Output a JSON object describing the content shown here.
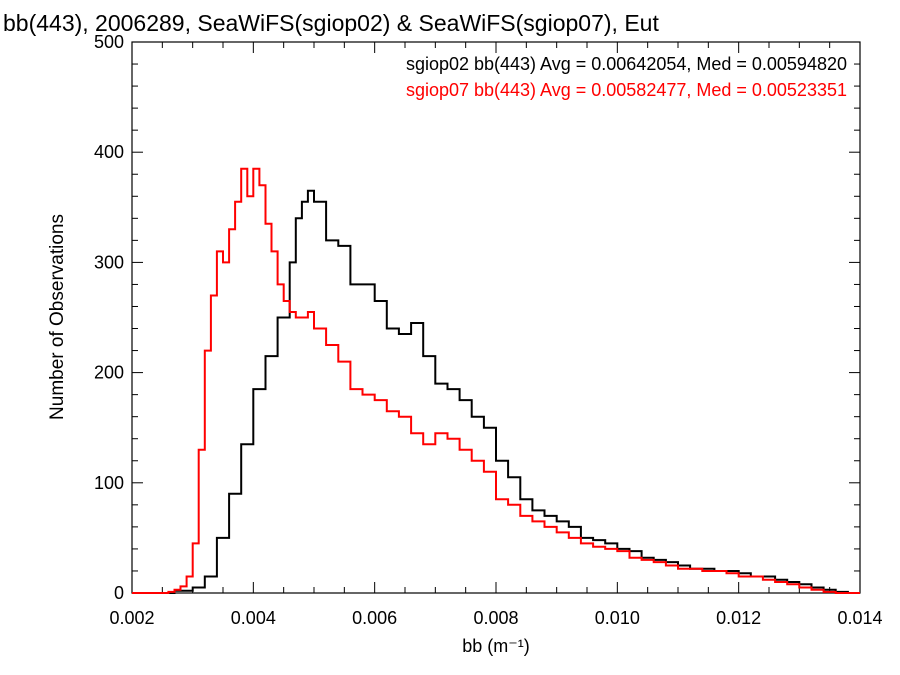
{
  "chart_data": {
    "type": "line",
    "title": "bb(443), 2006289, SeaWiFS(sgiop02) & SeaWiFS(sgiop07), Eut",
    "xlabel": "bb (m⁻¹)",
    "ylabel": "Number of Observations",
    "xlim": [
      0.002,
      0.014
    ],
    "ylim": [
      0,
      500
    ],
    "x_ticks": [
      "0.002",
      "0.004",
      "0.006",
      "0.008",
      "0.010",
      "0.012",
      "0.014"
    ],
    "y_ticks": [
      "0",
      "100",
      "200",
      "300",
      "400",
      "500"
    ],
    "grid": false,
    "legend_position": "top-right",
    "annotations": [
      "sgiop02 bb(443) Avg = 0.00642054, Med = 0.00594820",
      "sgiop07 bb(443) Avg = 0.00582477, Med = 0.00523351"
    ],
    "series": [
      {
        "color": "#000000",
        "x": [
          0.002,
          0.0025,
          0.0027,
          0.003,
          0.0032,
          0.0034,
          0.0036,
          0.0038,
          0.004,
          0.0042,
          0.0044,
          0.0046,
          0.0047,
          0.0048,
          0.0049,
          0.005,
          0.0052,
          0.0054,
          0.0056,
          0.0058,
          0.006,
          0.0062,
          0.0064,
          0.0066,
          0.0068,
          0.007,
          0.0072,
          0.0074,
          0.0076,
          0.0078,
          0.008,
          0.0082,
          0.0084,
          0.0086,
          0.0088,
          0.009,
          0.0092,
          0.0094,
          0.0096,
          0.0098,
          0.01,
          0.0102,
          0.0104,
          0.0106,
          0.0108,
          0.011,
          0.0112,
          0.0114,
          0.0116,
          0.0118,
          0.012,
          0.0122,
          0.0124,
          0.0126,
          0.0128,
          0.013,
          0.0132,
          0.0134,
          0.0136,
          0.0138,
          0.014
        ],
        "y": [
          0,
          0,
          2,
          5,
          15,
          50,
          90,
          135,
          185,
          215,
          250,
          300,
          340,
          355,
          365,
          355,
          320,
          315,
          280,
          280,
          265,
          240,
          235,
          245,
          215,
          190,
          185,
          175,
          160,
          150,
          120,
          105,
          85,
          75,
          70,
          65,
          60,
          50,
          48,
          45,
          40,
          38,
          32,
          30,
          28,
          25,
          22,
          22,
          20,
          20,
          18,
          15,
          15,
          12,
          10,
          8,
          5,
          3,
          1,
          0,
          0
        ]
      },
      {
        "color": "#ff0000",
        "x": [
          0.002,
          0.0025,
          0.0026,
          0.0027,
          0.0028,
          0.0029,
          0.003,
          0.0031,
          0.0032,
          0.0033,
          0.0034,
          0.0035,
          0.0036,
          0.0037,
          0.0038,
          0.0039,
          0.004,
          0.0041,
          0.0042,
          0.0043,
          0.0044,
          0.0045,
          0.0046,
          0.0047,
          0.0048,
          0.0049,
          0.005,
          0.0052,
          0.0054,
          0.0056,
          0.0058,
          0.006,
          0.0062,
          0.0064,
          0.0066,
          0.0068,
          0.007,
          0.0072,
          0.0074,
          0.0076,
          0.0078,
          0.008,
          0.0082,
          0.0084,
          0.0086,
          0.0088,
          0.009,
          0.0092,
          0.0094,
          0.0096,
          0.0098,
          0.01,
          0.0102,
          0.0104,
          0.0106,
          0.0108,
          0.011,
          0.0112,
          0.0114,
          0.0116,
          0.0118,
          0.012,
          0.0122,
          0.0124,
          0.0126,
          0.0128,
          0.013,
          0.0132,
          0.0134,
          0.0136,
          0.0138,
          0.014
        ],
        "y": [
          0,
          0,
          1,
          3,
          6,
          15,
          45,
          130,
          220,
          270,
          310,
          300,
          330,
          355,
          385,
          360,
          385,
          370,
          335,
          310,
          280,
          265,
          255,
          250,
          250,
          255,
          240,
          225,
          210,
          185,
          180,
          175,
          165,
          160,
          145,
          135,
          145,
          140,
          130,
          120,
          110,
          85,
          80,
          70,
          65,
          60,
          55,
          50,
          45,
          42,
          40,
          38,
          32,
          30,
          28,
          25,
          22,
          22,
          20,
          20,
          18,
          15,
          15,
          12,
          10,
          8,
          5,
          3,
          1,
          0,
          0,
          0
        ]
      }
    ]
  }
}
